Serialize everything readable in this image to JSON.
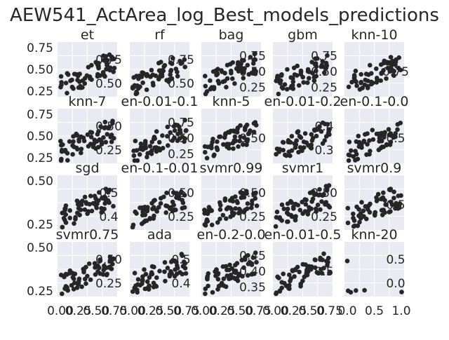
{
  "chart_data": {
    "title": "AEW541_ActArea_log_Best_models_predictions",
    "type": "scatter",
    "grid": true,
    "background_color": "#EAEAF2",
    "point_color": "#262626",
    "panels": [
      {
        "title": "et",
        "xticks": [],
        "yticks": [
          "0.25",
          "0.50",
          "0.75"
        ],
        "inner_ticks": [
          "0.75",
          "0.50"
        ],
        "seed": 1
      },
      {
        "title": "rf",
        "xticks": [],
        "yticks": [],
        "inner_ticks": [
          "0.75",
          "0.50"
        ],
        "seed": 2
      },
      {
        "title": "bag",
        "xticks": [],
        "yticks": [],
        "inner_ticks": [
          "0.75",
          "0.50",
          "0.25"
        ],
        "seed": 3
      },
      {
        "title": "gbm",
        "xticks": [],
        "yticks": [],
        "inner_ticks": [
          "0.75",
          "0.50",
          "0.25"
        ],
        "seed": 4
      },
      {
        "title": "knn-10",
        "xticks": [],
        "yticks": [],
        "inner_ticks": [
          "0.75"
        ],
        "seed": 5
      },
      {
        "title": "knn-7",
        "xticks": [],
        "yticks": [
          "0.25",
          "0.50",
          "0.75"
        ],
        "inner_ticks": [
          "0.50",
          "0.25"
        ],
        "seed": 6
      },
      {
        "title": "en-0.01-0.1",
        "xticks": [],
        "yticks": [],
        "inner_ticks": [
          "0.75",
          "0.50",
          "0.25"
        ],
        "seed": 7
      },
      {
        "title": "knn-5",
        "xticks": [],
        "yticks": [],
        "inner_ticks": [
          "0.50"
        ],
        "seed": 8
      },
      {
        "title": "en-0.01-0.2",
        "xticks": [],
        "yticks": [],
        "inner_ticks": [
          "0.4",
          "0.3"
        ],
        "seed": 9
      },
      {
        "title": "en-0.1-0.0",
        "xticks": [],
        "yticks": [],
        "inner_ticks": [
          "0.5"
        ],
        "seed": 10
      },
      {
        "title": "sgd",
        "xticks": [],
        "yticks": [
          "0.25",
          "0.50"
        ],
        "inner_ticks": [
          "0.5",
          "0.4"
        ],
        "seed": 11
      },
      {
        "title": "en-0.1-0.01",
        "xticks": [],
        "yticks": [],
        "inner_ticks": [
          "0.50",
          "0.25"
        ],
        "seed": 12
      },
      {
        "title": "svmr0.99",
        "xticks": [],
        "yticks": [],
        "inner_ticks": [
          "0.50",
          "0.25"
        ],
        "seed": 13
      },
      {
        "title": "svmr1",
        "xticks": [],
        "yticks": [],
        "inner_ticks": [
          "0.50",
          "0.25"
        ],
        "seed": 14
      },
      {
        "title": "svmr0.9",
        "xticks": [],
        "yticks": [],
        "inner_ticks": [
          "0.5"
        ],
        "seed": 15
      },
      {
        "title": "svmr0.75",
        "xticks": [
          "0.00",
          "0.25",
          "0.50",
          "0.75"
        ],
        "yticks": [
          "0.25",
          "0.50"
        ],
        "inner_ticks": [
          "0.50",
          "0.25"
        ],
        "seed": 16
      },
      {
        "title": "ada",
        "xticks": [
          "0.00",
          "0.25",
          "0.50",
          "0.75"
        ],
        "yticks": [],
        "inner_ticks": [
          "0.5",
          "0.4"
        ],
        "seed": 17
      },
      {
        "title": "en-0.2-0.0",
        "xticks": [
          "0.00",
          "0.25",
          "0.50",
          "0.75"
        ],
        "yticks": [],
        "inner_ticks": [
          "0.45",
          "0.40",
          "0.35"
        ],
        "seed": 18
      },
      {
        "title": "en-0.01-0.5",
        "xticks": [
          "0.00",
          "0.25",
          "0.50",
          "0.75"
        ],
        "yticks": [],
        "inner_ticks": [
          "0.5"
        ],
        "seed": 19
      },
      {
        "title": "knn-20",
        "xticks": [
          "0.0",
          "0.5",
          "1.0"
        ],
        "yticks": [],
        "inner_ticks": [
          "0.5",
          "0.0"
        ],
        "seed": 20,
        "sparse": true
      }
    ]
  }
}
